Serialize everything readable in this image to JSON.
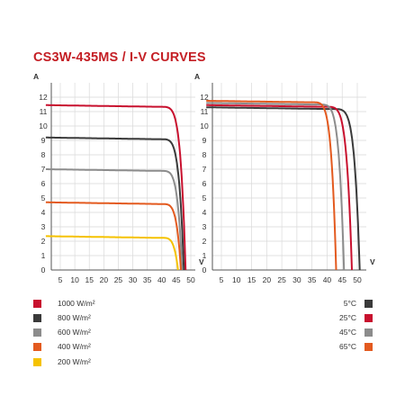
{
  "title": "CS3W-435MS / I-V CURVES",
  "chart_data": [
    {
      "type": "line",
      "name": "irradiance",
      "ylabel": "A",
      "xlabel": "V",
      "xlim": [
        0,
        50
      ],
      "ylim": [
        0,
        13
      ],
      "xticks": [
        5,
        10,
        15,
        20,
        25,
        30,
        35,
        40,
        45,
        50
      ],
      "yticks": [
        0,
        1,
        2,
        3,
        4,
        5,
        6,
        7,
        8,
        9,
        10,
        11,
        12
      ],
      "grid": true,
      "legend": "below-left",
      "series": [
        {
          "name": "1000 W/m²",
          "color": "#c8102e",
          "isc": 11.45,
          "voc": 48.2,
          "knee": 38,
          "bend": 6
        },
        {
          "name": "800 W/m²",
          "color": "#3a3a3a",
          "isc": 9.2,
          "voc": 47.6,
          "knee": 38.5,
          "bend": 5.6
        },
        {
          "name": "600 W/m²",
          "color": "#8c8c8c",
          "isc": 7.0,
          "voc": 47.0,
          "knee": 38.5,
          "bend": 5.6
        },
        {
          "name": "400 W/m²",
          "color": "#e35a1f",
          "isc": 4.7,
          "voc": 46.6,
          "knee": 39,
          "bend": 5.2
        },
        {
          "name": "200 W/m²",
          "color": "#f5c200",
          "isc": 2.35,
          "voc": 45.6,
          "knee": 39.5,
          "bend": 4.6
        }
      ]
    },
    {
      "type": "line",
      "name": "temperature",
      "ylabel": "A",
      "xlabel": "V",
      "xlim": [
        0,
        50
      ],
      "ylim": [
        0,
        13
      ],
      "xticks": [
        5,
        10,
        15,
        20,
        25,
        30,
        35,
        40,
        45,
        50
      ],
      "yticks": [
        0,
        1,
        2,
        3,
        4,
        5,
        6,
        7,
        8,
        9,
        10,
        11,
        12
      ],
      "grid": true,
      "legend": "below-right",
      "series": [
        {
          "name": "5°C",
          "color": "#3a3a3a",
          "isc": 11.3,
          "voc": 50.8,
          "knee": 40.5,
          "bend": 6
        },
        {
          "name": "25°C",
          "color": "#c8102e",
          "isc": 11.45,
          "voc": 48.2,
          "knee": 38,
          "bend": 6
        },
        {
          "name": "45°C",
          "color": "#8c8c8c",
          "isc": 11.6,
          "voc": 45.6,
          "knee": 35.8,
          "bend": 6
        },
        {
          "name": "65°C",
          "color": "#e35a1f",
          "isc": 11.75,
          "voc": 43.0,
          "knee": 33.5,
          "bend": 6
        }
      ]
    }
  ]
}
